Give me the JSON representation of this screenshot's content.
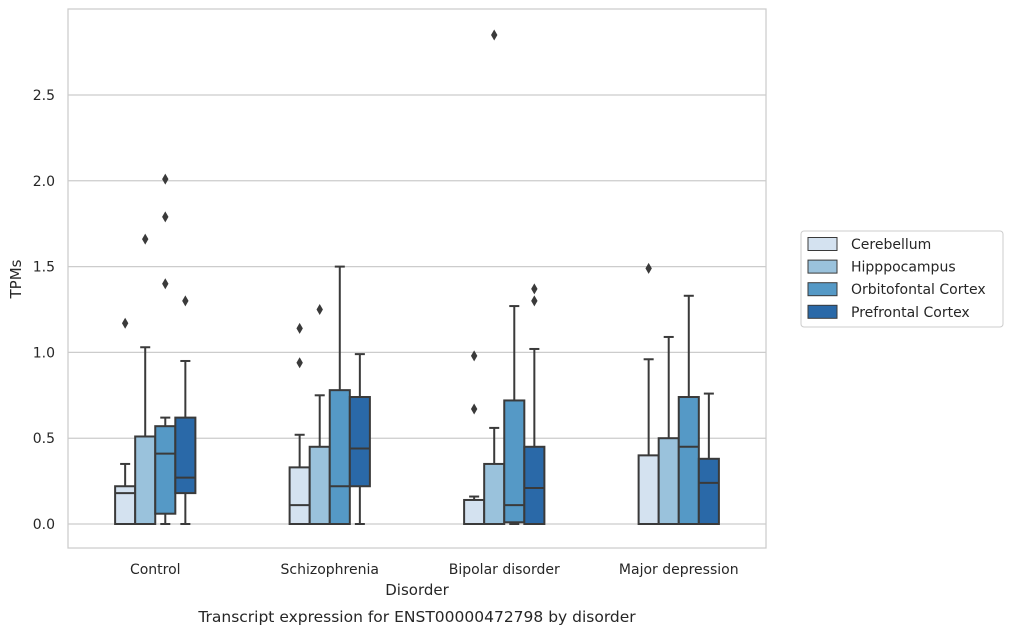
{
  "chart_data": {
    "type": "box",
    "caption": "Transcript expression for ENST00000472798 by disorder",
    "xlabel": "Disorder",
    "ylabel": "TPMs",
    "ylim": [
      -0.14,
      3.01
    ],
    "yticks": [
      "0.0",
      "0.5",
      "1.0",
      "1.5",
      "2.0",
      "2.5"
    ],
    "grid": "horizontal",
    "legend_position": "right",
    "categories": [
      "Control",
      "Schizophrenia",
      "Bipolar disorder",
      "Major depression"
    ],
    "series": [
      {
        "name": "Cerebellum",
        "color": "#d4e2f0",
        "boxes": [
          {
            "whisker_low": 0,
            "q1": 0,
            "median": 0.18,
            "q3": 0.22,
            "whisker_high": 0.35,
            "outliers": [
              1.17
            ]
          },
          {
            "whisker_low": 0,
            "q1": 0,
            "median": 0.11,
            "q3": 0.33,
            "whisker_high": 0.52,
            "outliers": [
              0.94,
              1.14
            ]
          },
          {
            "whisker_low": 0,
            "q1": 0,
            "median": 0,
            "q3": 0.14,
            "whisker_high": 0.16,
            "outliers": [
              0.67,
              0.98
            ]
          },
          {
            "whisker_low": 0,
            "q1": 0,
            "median": 0,
            "q3": 0.4,
            "whisker_high": 0.96,
            "outliers": [
              1.49
            ]
          }
        ]
      },
      {
        "name": "Hipppocampus",
        "color": "#9ac2dc",
        "boxes": [
          {
            "whisker_low": 0,
            "q1": 0,
            "median": 0,
            "q3": 0.51,
            "whisker_high": 1.03,
            "outliers": [
              1.66
            ]
          },
          {
            "whisker_low": 0,
            "q1": 0,
            "median": 0,
            "q3": 0.45,
            "whisker_high": 0.75,
            "outliers": [
              1.25
            ]
          },
          {
            "whisker_low": 0,
            "q1": 0,
            "median": 0,
            "q3": 0.35,
            "whisker_high": 0.56,
            "outliers": [
              2.85
            ]
          },
          {
            "whisker_low": 0,
            "q1": 0,
            "median": 0,
            "q3": 0.5,
            "whisker_high": 1.09,
            "outliers": []
          }
        ]
      },
      {
        "name": "Orbitofontal Cortex",
        "color": "#5599c6",
        "boxes": [
          {
            "whisker_low": 0,
            "q1": 0.06,
            "median": 0.41,
            "q3": 0.57,
            "whisker_high": 0.62,
            "outliers": [
              1.4,
              1.79,
              2.01
            ]
          },
          {
            "whisker_low": 0,
            "q1": 0,
            "median": 0.22,
            "q3": 0.78,
            "whisker_high": 1.5,
            "outliers": []
          },
          {
            "whisker_low": 0,
            "q1": 0.01,
            "median": 0.11,
            "q3": 0.72,
            "whisker_high": 1.27,
            "outliers": []
          },
          {
            "whisker_low": 0,
            "q1": 0,
            "median": 0.45,
            "q3": 0.74,
            "whisker_high": 1.33,
            "outliers": []
          }
        ]
      },
      {
        "name": "Prefrontal Cortex",
        "color": "#2a69a8",
        "boxes": [
          {
            "whisker_low": 0,
            "q1": 0.18,
            "median": 0.27,
            "q3": 0.62,
            "whisker_high": 0.95,
            "outliers": [
              1.3
            ]
          },
          {
            "whisker_low": 0,
            "q1": 0.22,
            "median": 0.44,
            "q3": 0.74,
            "whisker_high": 0.99,
            "outliers": []
          },
          {
            "whisker_low": 0,
            "q1": 0,
            "median": 0.21,
            "q3": 0.45,
            "whisker_high": 1.02,
            "outliers": [
              1.3,
              1.37
            ]
          },
          {
            "whisker_low": 0,
            "q1": 0,
            "median": 0.24,
            "q3": 0.38,
            "whisker_high": 0.76,
            "outliers": []
          }
        ]
      }
    ]
  }
}
